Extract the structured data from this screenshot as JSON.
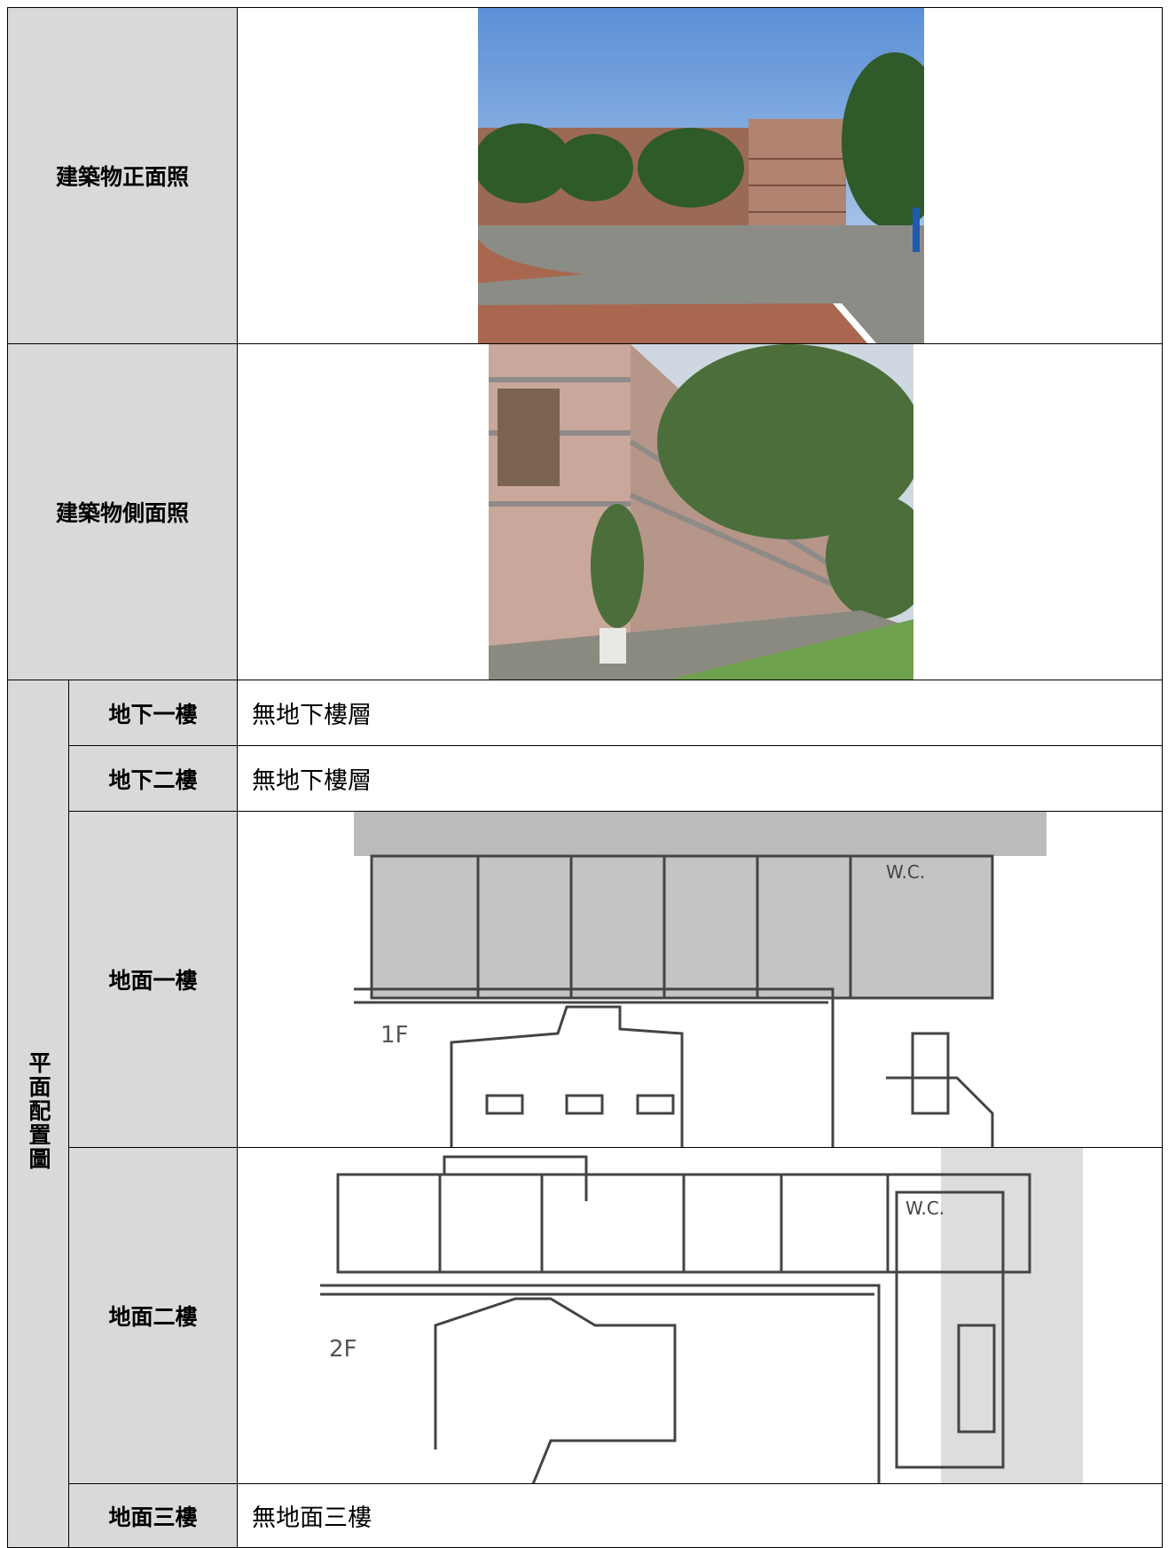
{
  "rows": [
    {
      "label": "建築物正面照"
    },
    {
      "label": "建築物側面照"
    }
  ],
  "floor_plan": {
    "label": "平面配置圖",
    "floors": [
      {
        "label": "地下一樓",
        "content": "無地下樓層"
      },
      {
        "label": "地下二樓",
        "content": "無地下樓層"
      },
      {
        "label": "地面一樓",
        "plan_label": "1F",
        "room_label": "W.C."
      },
      {
        "label": "地面二樓",
        "plan_label": "2F",
        "room_label": "W.C."
      },
      {
        "label": "地面三樓",
        "content": "無地面三樓"
      }
    ]
  }
}
